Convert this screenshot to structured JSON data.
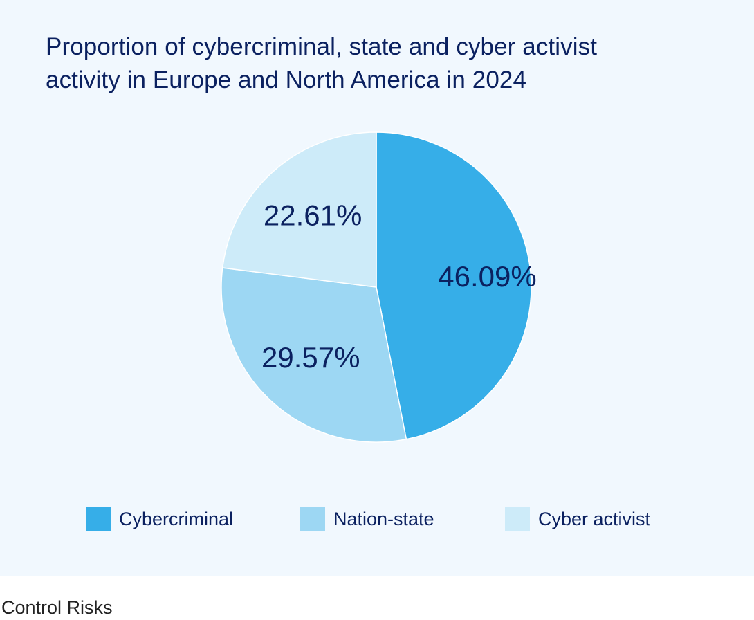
{
  "chart_data": {
    "type": "pie",
    "title": "Proportion of cybercriminal, state and cyber activist\nactivity in Europe and North America in 2024",
    "categories": [
      "Cybercriminal",
      "Nation-state",
      "Cyber activist"
    ],
    "values": [
      46.09,
      29.57,
      22.61
    ],
    "labels": [
      "46.09%",
      "29.57%",
      "22.61%"
    ],
    "colors": [
      "#36aee8",
      "#9dd7f3",
      "#cdebf9"
    ],
    "legend_position": "bottom"
  },
  "legend": {
    "items": [
      {
        "label": "Cybercriminal",
        "color": "#36aee8"
      },
      {
        "label": "Nation-state",
        "color": "#9dd7f3"
      },
      {
        "label": "Cyber activist",
        "color": "#cdebf9"
      }
    ]
  },
  "colors": {
    "background": "#f1f8fe",
    "text": "#0b2160"
  },
  "source": "Control Risks"
}
